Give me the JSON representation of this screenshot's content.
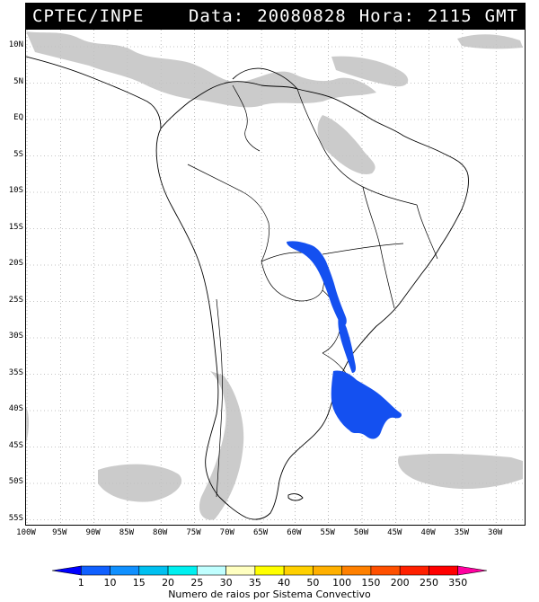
{
  "header": {
    "source": "CPTEC/INPE",
    "date_label": "Data:",
    "date_value": "20080828",
    "time_label": "Hora:",
    "time_value": "2115",
    "tz": "GMT"
  },
  "axes": {
    "lat_labels": [
      "10N",
      "5N",
      "EQ",
      "5S",
      "10S",
      "15S",
      "20S",
      "25S",
      "30S",
      "35S",
      "40S",
      "45S",
      "50S",
      "55S"
    ],
    "lon_labels": [
      "100W",
      "95W",
      "90W",
      "85W",
      "80W",
      "75W",
      "70W",
      "65W",
      "60W",
      "55W",
      "50W",
      "45W",
      "40W",
      "35W",
      "30W"
    ]
  },
  "colorbar": {
    "title": "Numero de raios por Sistema Convectivo",
    "labels": [
      "1",
      "10",
      "15",
      "20",
      "25",
      "30",
      "35",
      "40",
      "50",
      "100",
      "150",
      "200",
      "250",
      "350"
    ],
    "colors": [
      "#0000ff",
      "#1060ff",
      "#1090ff",
      "#00c0f0",
      "#00f0f0",
      "#c0ffff",
      "#ffffc0",
      "#ffff00",
      "#ffd000",
      "#ffb000",
      "#ff8000",
      "#ff5000",
      "#ff2000",
      "#ff0000",
      "#ff00a0"
    ]
  },
  "map": {
    "coastline_color": "#000000",
    "cloud_color": "#b8b8b8",
    "lightning_color": "#1450f0"
  }
}
